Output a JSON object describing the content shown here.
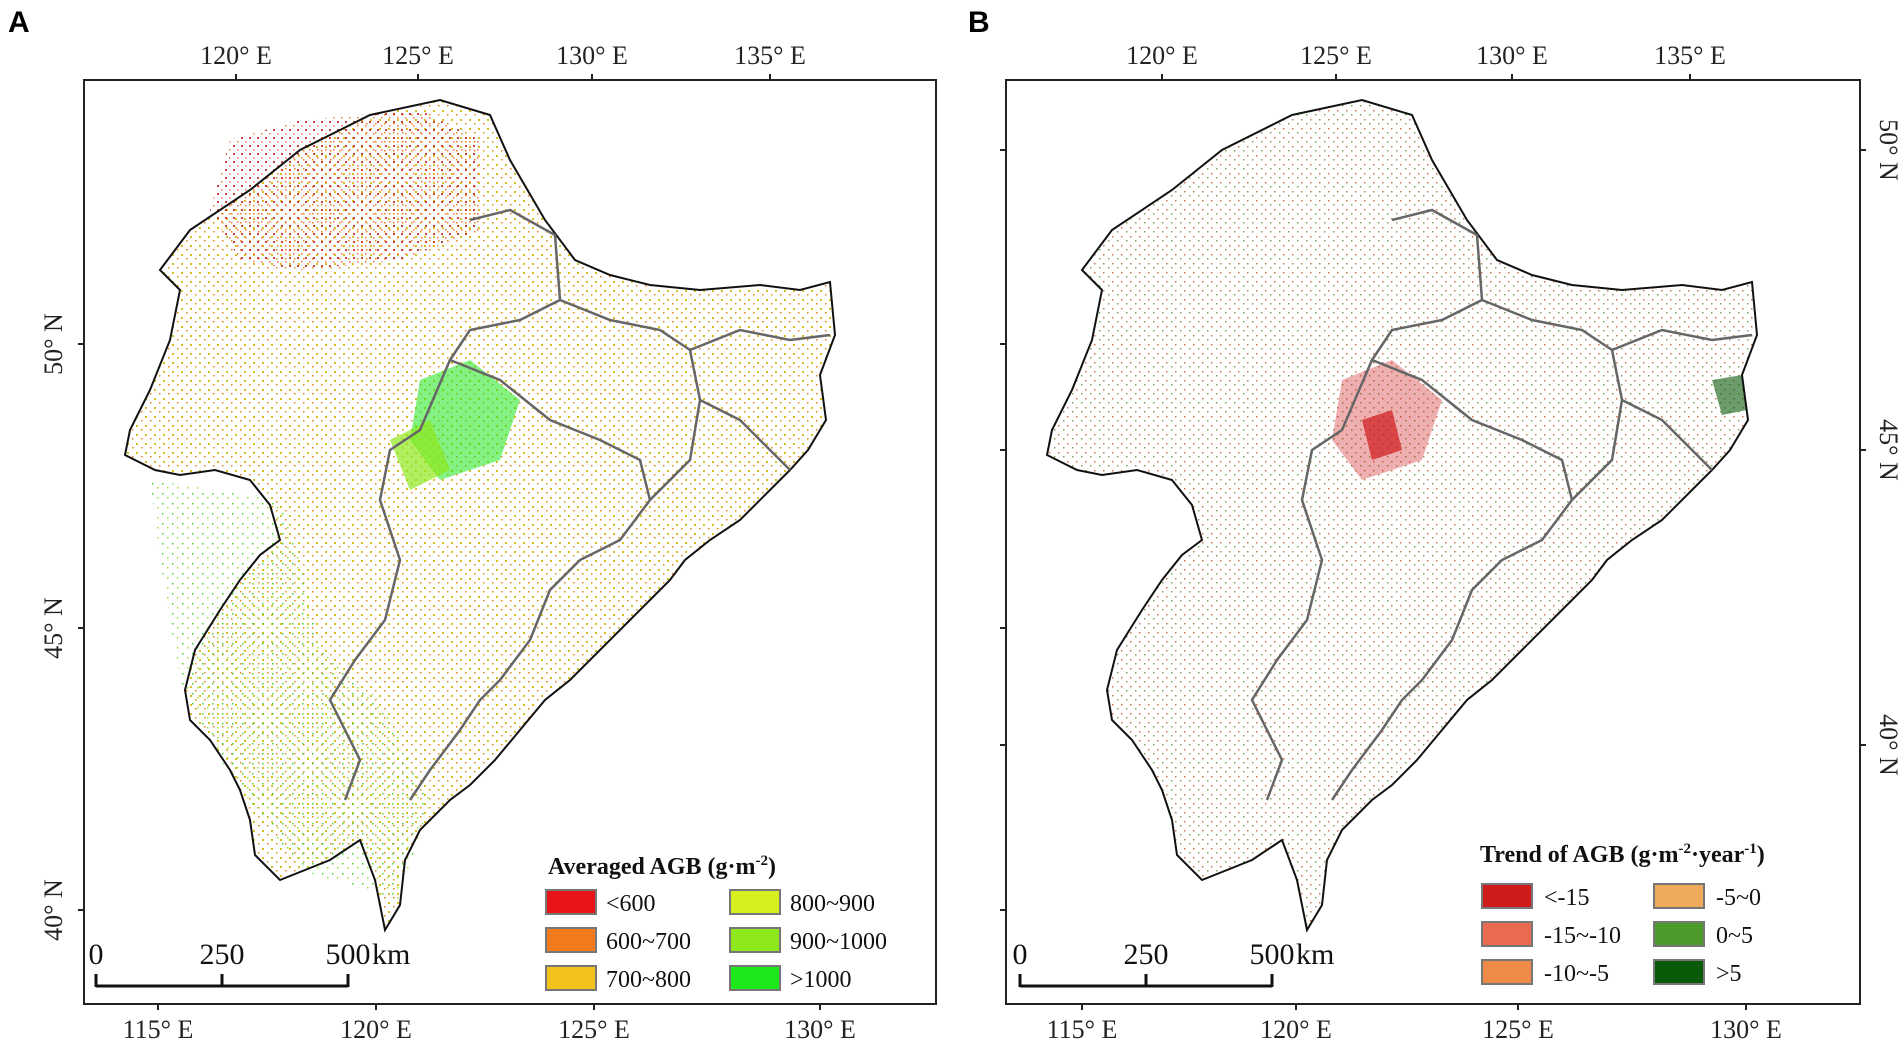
{
  "panels": [
    {
      "letter": "A",
      "top_lon_labels": [
        "120° E",
        "125° E",
        "130° E",
        "135° E"
      ],
      "bottom_lon_labels": [
        "115° E",
        "120° E",
        "125° E",
        "130° E"
      ],
      "lat_labels": [
        "50° N",
        "45° N",
        "40° N"
      ],
      "scale": {
        "tick0": "0",
        "tick1": "250",
        "tick2": "500",
        "unit": "km"
      },
      "legend": {
        "title": "Averaged AGB (g·m",
        "title_sup": "-2",
        "title_end": ")",
        "items": [
          {
            "label": "<600",
            "color": "#e8141a"
          },
          {
            "label": "600~700",
            "color": "#f07a1c"
          },
          {
            "label": "700~800",
            "color": "#f4c21c"
          },
          {
            "label": "800~900",
            "color": "#d6ee1e"
          },
          {
            "label": "900~1000",
            "color": "#8ee81c"
          },
          {
            "label": ">1000",
            "color": "#1ee81c"
          }
        ]
      }
    },
    {
      "letter": "B",
      "top_lon_labels": [
        "120° E",
        "125° E",
        "130° E",
        "135° E"
      ],
      "bottom_lon_labels": [
        "115° E",
        "120° E",
        "125° E",
        "130° E"
      ],
      "lat_labels": [
        "50° N",
        "45° N",
        "40° N"
      ],
      "scale": {
        "tick0": "0",
        "tick1": "250",
        "tick2": "500",
        "unit": "km"
      },
      "legend": {
        "title": "Trend of AGB (g·m",
        "title_sup": "-2",
        "title_mid": "·year",
        "title_sup2": "-1",
        "title_end": ")",
        "items": [
          {
            "label": "<-15",
            "color": "#cf1a1c"
          },
          {
            "label": "-15~-10",
            "color": "#ea6a50"
          },
          {
            "label": "-10~-5",
            "color": "#f08a48"
          },
          {
            "label": "-5~0",
            "color": "#eeaa58"
          },
          {
            "label": "0~5",
            "color": "#4c9a2a"
          },
          {
            "label": ">5",
            "color": "#0a5a0a"
          }
        ]
      }
    }
  ]
}
